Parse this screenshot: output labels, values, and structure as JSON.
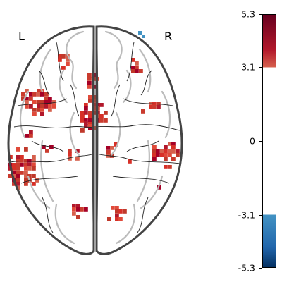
{
  "orientation": {
    "left": "L",
    "right": "R"
  },
  "colorbar": {
    "colormap": "cold_hot",
    "max": 5.3,
    "min": -5.3,
    "threshold": 3.1,
    "ticks": [
      "5.3",
      "3.1",
      "0",
      "-3.1",
      "-5.3"
    ],
    "tick_values": [
      5.3,
      3.1,
      0,
      -3.1,
      -5.3
    ],
    "colors": {
      "top": "#67001f",
      "upper": "#b2182b",
      "threshold_pos": "#d6604d",
      "neutral": "#ffffff",
      "threshold_neg": "#4393c3",
      "lower": "#2166ac",
      "bottom": "#053061"
    }
  },
  "colors": {
    "activation": "#d73027",
    "activation_dark": "#a50026",
    "deactivation": "#4393c3",
    "outline": "#444444",
    "contour": "#bbbbbb",
    "sulcus": "#222222"
  }
}
